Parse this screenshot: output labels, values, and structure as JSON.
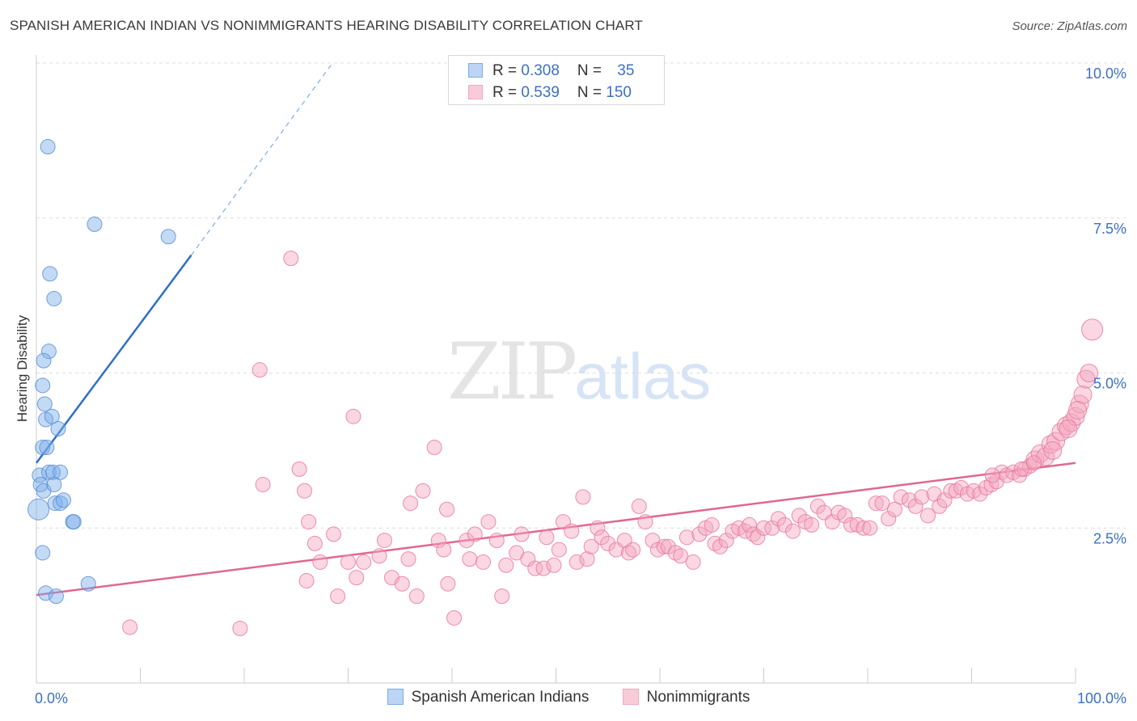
{
  "title": "SPANISH AMERICAN INDIAN VS NONIMMIGRANTS HEARING DISABILITY CORRELATION CHART",
  "source": "Source: ZipAtlas.com",
  "watermark": {
    "zip": "ZIP",
    "atlas": "atlas"
  },
  "legend": {
    "r_label": "R = ",
    "n_label": "N = ",
    "rows": [
      {
        "r": "0.308",
        "n": "35"
      },
      {
        "r": "0.539",
        "n": "150"
      }
    ]
  },
  "chart_data": {
    "type": "scatter",
    "title": "SPANISH AMERICAN INDIAN VS NONIMMIGRANTS HEARING DISABILITY CORRELATION CHART",
    "xlabel": "",
    "ylabel": "Hearing Disability",
    "xlim": [
      0,
      100
    ],
    "ylim": [
      0,
      10
    ],
    "x_tick_labels": [
      "0.0%",
      "100.0%"
    ],
    "y_ticks": [
      {
        "value": 2.5,
        "label": "2.5%"
      },
      {
        "value": 5.0,
        "label": "5.0%"
      },
      {
        "value": 7.5,
        "label": "7.5%"
      },
      {
        "value": 10.0,
        "label": "10.0%"
      }
    ],
    "grid": "horizontal dashed",
    "legend_position": "top-center",
    "series": [
      {
        "name": "Spanish American Indians",
        "color": "#7aaee8",
        "stroke": "#5a8fd6",
        "r": 0.308,
        "n": 35,
        "trend": {
          "x0": 0.0,
          "y0": 3.55,
          "x1": 14.9,
          "y1": 6.9,
          "dash_to": {
            "x": 28.5,
            "y": 10.0
          }
        },
        "points": [
          {
            "x": 1.1,
            "y": 8.65
          },
          {
            "x": 5.6,
            "y": 7.4
          },
          {
            "x": 12.7,
            "y": 7.2
          },
          {
            "x": 1.3,
            "y": 6.6
          },
          {
            "x": 1.7,
            "y": 6.2
          },
          {
            "x": 1.2,
            "y": 5.35
          },
          {
            "x": 0.7,
            "y": 5.2
          },
          {
            "x": 0.6,
            "y": 4.8
          },
          {
            "x": 0.8,
            "y": 4.5
          },
          {
            "x": 0.9,
            "y": 4.25
          },
          {
            "x": 1.5,
            "y": 4.3
          },
          {
            "x": 2.1,
            "y": 4.1
          },
          {
            "x": 0.6,
            "y": 3.8
          },
          {
            "x": 1.0,
            "y": 3.8
          },
          {
            "x": 0.3,
            "y": 3.35
          },
          {
            "x": 1.2,
            "y": 3.4
          },
          {
            "x": 1.6,
            "y": 3.4
          },
          {
            "x": 2.3,
            "y": 3.4
          },
          {
            "x": 0.4,
            "y": 3.2
          },
          {
            "x": 0.7,
            "y": 3.1
          },
          {
            "x": 1.7,
            "y": 3.2
          },
          {
            "x": 1.8,
            "y": 2.9
          },
          {
            "x": 2.3,
            "y": 2.9
          },
          {
            "x": 2.6,
            "y": 2.95
          },
          {
            "x": 0.2,
            "y": 2.8
          },
          {
            "x": 3.5,
            "y": 2.6
          },
          {
            "x": 3.6,
            "y": 2.6
          },
          {
            "x": 0.6,
            "y": 2.1
          },
          {
            "x": 5.0,
            "y": 1.6
          },
          {
            "x": 0.9,
            "y": 1.45
          },
          {
            "x": 1.9,
            "y": 1.4
          }
        ]
      },
      {
        "name": "Nonimmigrants",
        "color": "#f4a7bf",
        "stroke": "#e87aa0",
        "r": 0.539,
        "n": 150,
        "trend": {
          "x0": 0.0,
          "y0": 1.42,
          "x1": 100.0,
          "y1": 3.55
        },
        "points": [
          {
            "x": 9.0,
            "y": 0.9
          },
          {
            "x": 19.6,
            "y": 0.88
          },
          {
            "x": 24.5,
            "y": 6.85
          },
          {
            "x": 21.5,
            "y": 5.05
          },
          {
            "x": 30.5,
            "y": 4.3
          },
          {
            "x": 38.3,
            "y": 3.8
          },
          {
            "x": 25.3,
            "y": 3.45
          },
          {
            "x": 21.8,
            "y": 3.2
          },
          {
            "x": 25.8,
            "y": 3.1
          },
          {
            "x": 37.2,
            "y": 3.1
          },
          {
            "x": 36.0,
            "y": 2.9
          },
          {
            "x": 39.5,
            "y": 2.8
          },
          {
            "x": 26.2,
            "y": 2.6
          },
          {
            "x": 28.6,
            "y": 2.4
          },
          {
            "x": 33.5,
            "y": 2.3
          },
          {
            "x": 26.8,
            "y": 2.25
          },
          {
            "x": 30.0,
            "y": 1.95
          },
          {
            "x": 31.5,
            "y": 1.95
          },
          {
            "x": 27.3,
            "y": 1.95
          },
          {
            "x": 26.0,
            "y": 1.65
          },
          {
            "x": 29.0,
            "y": 1.4
          },
          {
            "x": 30.8,
            "y": 1.7
          },
          {
            "x": 34.2,
            "y": 1.7
          },
          {
            "x": 35.2,
            "y": 1.6
          },
          {
            "x": 36.6,
            "y": 1.4
          },
          {
            "x": 39.6,
            "y": 1.6
          },
          {
            "x": 40.2,
            "y": 1.05
          },
          {
            "x": 33.0,
            "y": 2.05
          },
          {
            "x": 35.8,
            "y": 2.0
          },
          {
            "x": 38.7,
            "y": 2.3
          },
          {
            "x": 39.2,
            "y": 2.15
          },
          {
            "x": 41.4,
            "y": 2.3
          },
          {
            "x": 42.2,
            "y": 2.4
          },
          {
            "x": 43.5,
            "y": 2.6
          },
          {
            "x": 41.7,
            "y": 2.0
          },
          {
            "x": 43.0,
            "y": 1.95
          },
          {
            "x": 44.3,
            "y": 2.3
          },
          {
            "x": 45.2,
            "y": 1.9
          },
          {
            "x": 44.8,
            "y": 1.4
          },
          {
            "x": 46.2,
            "y": 2.1
          },
          {
            "x": 46.7,
            "y": 2.4
          },
          {
            "x": 47.3,
            "y": 2.0
          },
          {
            "x": 48.0,
            "y": 1.85
          },
          {
            "x": 48.8,
            "y": 1.85
          },
          {
            "x": 49.1,
            "y": 2.35
          },
          {
            "x": 49.8,
            "y": 1.9
          },
          {
            "x": 50.7,
            "y": 2.6
          },
          {
            "x": 50.3,
            "y": 2.15
          },
          {
            "x": 51.5,
            "y": 2.45
          },
          {
            "x": 52.0,
            "y": 1.95
          },
          {
            "x": 52.6,
            "y": 3.0
          },
          {
            "x": 53.0,
            "y": 2.0
          },
          {
            "x": 53.4,
            "y": 2.2
          },
          {
            "x": 54.0,
            "y": 2.5
          },
          {
            "x": 54.4,
            "y": 2.35
          },
          {
            "x": 55.0,
            "y": 2.25
          },
          {
            "x": 55.8,
            "y": 2.15
          },
          {
            "x": 56.6,
            "y": 2.3
          },
          {
            "x": 57.0,
            "y": 2.1
          },
          {
            "x": 57.4,
            "y": 2.15
          },
          {
            "x": 58.0,
            "y": 2.85
          },
          {
            "x": 58.6,
            "y": 2.6
          },
          {
            "x": 59.3,
            "y": 2.3
          },
          {
            "x": 59.8,
            "y": 2.15
          },
          {
            "x": 60.4,
            "y": 2.2
          },
          {
            "x": 60.8,
            "y": 2.2
          },
          {
            "x": 61.5,
            "y": 2.1
          },
          {
            "x": 62.0,
            "y": 2.05
          },
          {
            "x": 62.6,
            "y": 2.35
          },
          {
            "x": 63.2,
            "y": 1.95
          },
          {
            "x": 63.8,
            "y": 2.4
          },
          {
            "x": 64.4,
            "y": 2.5
          },
          {
            "x": 65.0,
            "y": 2.55
          },
          {
            "x": 65.3,
            "y": 2.25
          },
          {
            "x": 65.8,
            "y": 2.2
          },
          {
            "x": 66.4,
            "y": 2.3
          },
          {
            "x": 67.0,
            "y": 2.45
          },
          {
            "x": 67.6,
            "y": 2.5
          },
          {
            "x": 68.2,
            "y": 2.45
          },
          {
            "x": 68.6,
            "y": 2.55
          },
          {
            "x": 69.0,
            "y": 2.4
          },
          {
            "x": 69.4,
            "y": 2.35
          },
          {
            "x": 70.0,
            "y": 2.5
          },
          {
            "x": 70.8,
            "y": 2.5
          },
          {
            "x": 71.4,
            "y": 2.65
          },
          {
            "x": 72.0,
            "y": 2.55
          },
          {
            "x": 72.8,
            "y": 2.45
          },
          {
            "x": 73.4,
            "y": 2.7
          },
          {
            "x": 74.0,
            "y": 2.6
          },
          {
            "x": 74.6,
            "y": 2.55
          },
          {
            "x": 75.2,
            "y": 2.85
          },
          {
            "x": 75.8,
            "y": 2.75
          },
          {
            "x": 76.6,
            "y": 2.6
          },
          {
            "x": 77.2,
            "y": 2.75
          },
          {
            "x": 77.8,
            "y": 2.7
          },
          {
            "x": 78.4,
            "y": 2.55
          },
          {
            "x": 79.0,
            "y": 2.55
          },
          {
            "x": 79.6,
            "y": 2.5
          },
          {
            "x": 80.2,
            "y": 2.5
          },
          {
            "x": 80.8,
            "y": 2.9
          },
          {
            "x": 81.4,
            "y": 2.9
          },
          {
            "x": 82.0,
            "y": 2.65
          },
          {
            "x": 82.6,
            "y": 2.8
          },
          {
            "x": 83.2,
            "y": 3.0
          },
          {
            "x": 84.0,
            "y": 2.95
          },
          {
            "x": 84.6,
            "y": 2.85
          },
          {
            "x": 85.2,
            "y": 3.0
          },
          {
            "x": 85.8,
            "y": 2.7
          },
          {
            "x": 86.4,
            "y": 3.05
          },
          {
            "x": 86.9,
            "y": 2.85
          },
          {
            "x": 87.4,
            "y": 2.95
          },
          {
            "x": 88.0,
            "y": 3.1
          },
          {
            "x": 88.5,
            "y": 3.1
          },
          {
            "x": 89.0,
            "y": 3.15
          },
          {
            "x": 89.6,
            "y": 3.05
          },
          {
            "x": 90.2,
            "y": 3.1
          },
          {
            "x": 90.8,
            "y": 3.05
          },
          {
            "x": 91.4,
            "y": 3.15
          },
          {
            "x": 91.9,
            "y": 3.2
          },
          {
            "x": 92.4,
            "y": 3.25
          },
          {
            "x": 92.9,
            "y": 3.4
          },
          {
            "x": 93.4,
            "y": 3.35
          },
          {
            "x": 94.0,
            "y": 3.4
          },
          {
            "x": 94.6,
            "y": 3.35
          },
          {
            "x": 95.1,
            "y": 3.45
          },
          {
            "x": 95.6,
            "y": 3.5
          },
          {
            "x": 96.1,
            "y": 3.6
          },
          {
            "x": 96.6,
            "y": 3.7
          },
          {
            "x": 97.1,
            "y": 3.65
          },
          {
            "x": 97.6,
            "y": 3.85
          },
          {
            "x": 98.1,
            "y": 3.9
          },
          {
            "x": 98.6,
            "y": 4.05
          },
          {
            "x": 99.1,
            "y": 4.15
          },
          {
            "x": 99.6,
            "y": 4.2
          },
          {
            "x": 100.0,
            "y": 4.3
          },
          {
            "x": 100.4,
            "y": 4.5
          },
          {
            "x": 100.7,
            "y": 4.65
          },
          {
            "x": 101.0,
            "y": 4.9
          },
          {
            "x": 101.3,
            "y": 5.0
          },
          {
            "x": 101.6,
            "y": 5.7
          },
          {
            "x": 92.0,
            "y": 3.35
          },
          {
            "x": 94.8,
            "y": 3.45
          },
          {
            "x": 96.0,
            "y": 3.55
          },
          {
            "x": 97.8,
            "y": 3.75
          },
          {
            "x": 99.3,
            "y": 4.1
          },
          {
            "x": 100.2,
            "y": 4.4
          }
        ]
      }
    ]
  }
}
